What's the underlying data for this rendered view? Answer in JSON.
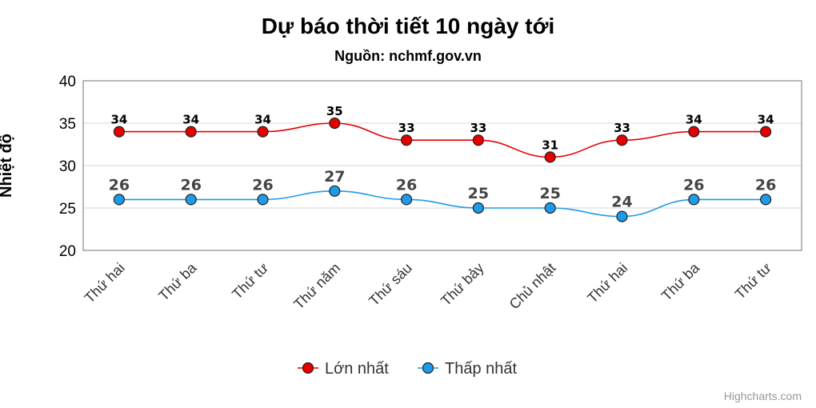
{
  "title": "Dự báo thời tiết 10 ngày tới",
  "subtitle": "Nguồn: nchmf.gov.vn",
  "credits": "Highcharts.com",
  "chart_data": {
    "type": "line",
    "title": "Dự báo thời tiết 10 ngày tới",
    "subtitle": "Nguồn: nchmf.gov.vn",
    "xlabel": "",
    "ylabel": "Nhiệt độ",
    "ylim": [
      20,
      40
    ],
    "yticks": [
      20,
      25,
      30,
      35,
      40
    ],
    "grid": true,
    "legend": "bottom-center",
    "categories": [
      "Thứ hai",
      "Thứ ba",
      "Thứ tư",
      "Thứ năm",
      "Thứ sáu",
      "Thứ bảy",
      "Chủ nhật",
      "Thứ hai",
      "Thứ ba",
      "Thứ tư"
    ],
    "series": [
      {
        "name": "Lớn nhất",
        "color": "#e50000",
        "values": [
          34,
          34,
          34,
          35,
          33,
          33,
          31,
          33,
          34,
          34
        ]
      },
      {
        "name": "Thấp nhất",
        "color": "#1e9be8",
        "values": [
          26,
          26,
          26,
          27,
          26,
          25,
          25,
          24,
          26,
          26
        ]
      }
    ]
  }
}
